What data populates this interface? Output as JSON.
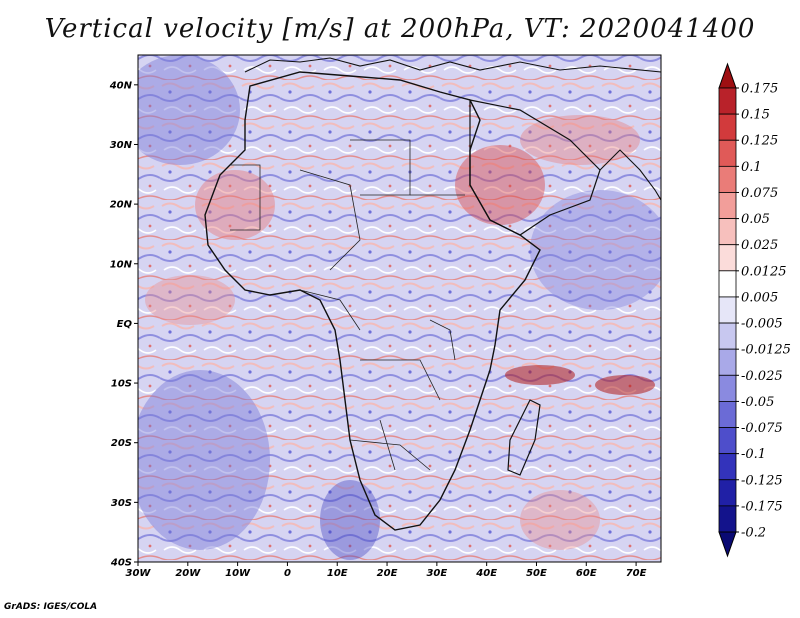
{
  "title": "Vertical velocity [m/s] at 200hPa, VT: 2020041400",
  "credit": "GrADS: IGES/COLA",
  "map": {
    "lon_range": [
      -30,
      75
    ],
    "lat_range": [
      -40,
      45
    ],
    "lat_ticks": [
      "40N",
      "30N",
      "20N",
      "10N",
      "EQ",
      "10S",
      "20S",
      "30S",
      "40S"
    ],
    "lon_ticks": [
      "30W",
      "20W",
      "10W",
      "0",
      "10E",
      "20E",
      "30E",
      "40E",
      "50E",
      "60E",
      "70E"
    ]
  },
  "colorbar": {
    "levels": [
      "0.175",
      "0.15",
      "0.125",
      "0.1",
      "0.075",
      "0.05",
      "0.025",
      "0.0125",
      "0.005",
      "-0.005",
      "-0.0125",
      "-0.025",
      "-0.05",
      "-0.075",
      "-0.1",
      "-0.125",
      "-0.175",
      "-0.2"
    ],
    "colors": [
      "#9e0f12",
      "#b9222a",
      "#d23a3c",
      "#e05a58",
      "#ea7c78",
      "#f29e9a",
      "#f7c0bd",
      "#fbdcda",
      "#ffffff",
      "#e6e6f8",
      "#c8c8f0",
      "#a9a9e8",
      "#8a8ae0",
      "#6b6bd6",
      "#4e4ecb",
      "#3333bb",
      "#2020a6",
      "#13138c",
      "#0a0a73"
    ]
  }
}
